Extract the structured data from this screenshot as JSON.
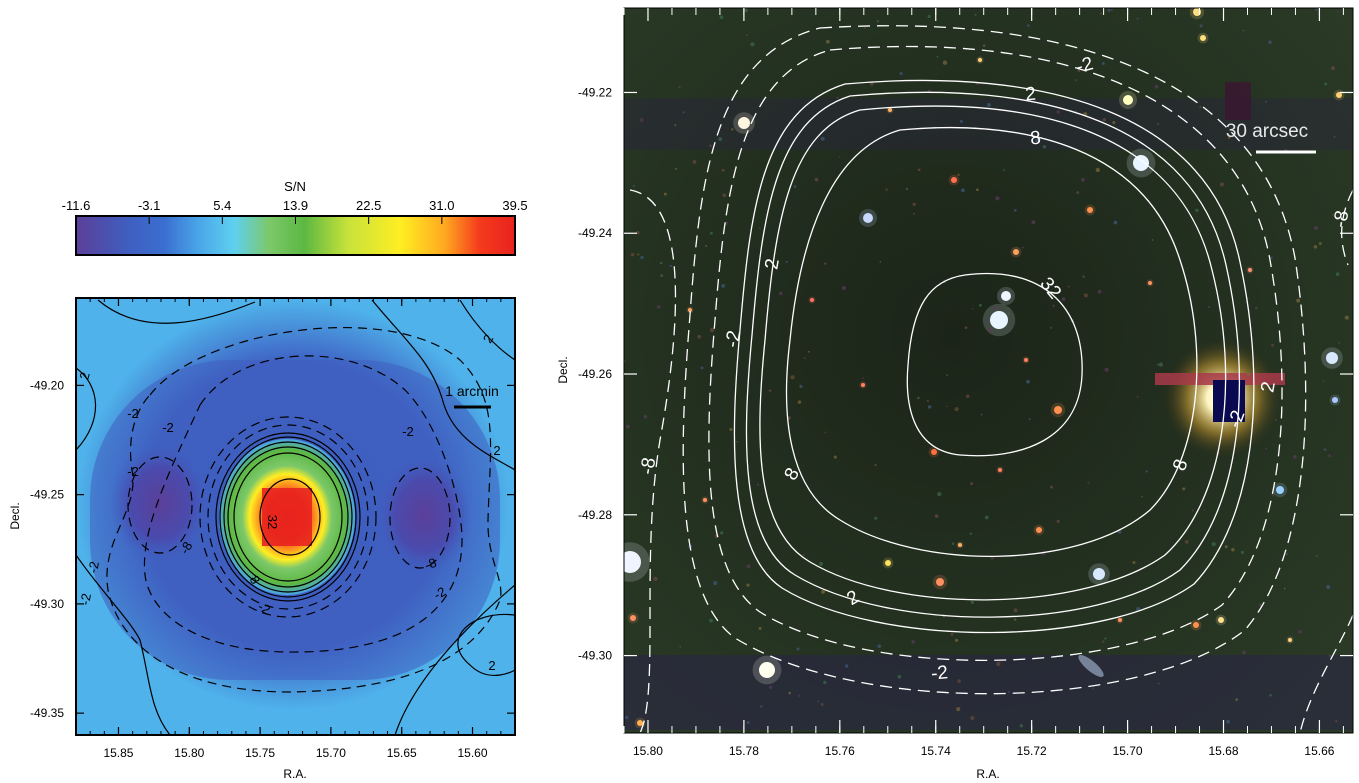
{
  "colorbar": {
    "title": "S/N",
    "ticks": [
      "-11.6",
      "-3.1",
      "5.4",
      "13.9",
      "22.5",
      "31.0",
      "39.5"
    ],
    "range": [
      -11.6,
      39.5
    ],
    "colors": [
      "#5b3f99",
      "#3f5fc0",
      "#4aa6e8",
      "#5fd0f0",
      "#7cc86a",
      "#5cb842",
      "#c8e23a",
      "#ffee22",
      "#ffa820",
      "#f43a1c",
      "#e8231f"
    ]
  },
  "chart_data": [
    {
      "type": "heatmap",
      "xlabel": "R.A.",
      "ylabel": "Decl.",
      "xlim": [
        15.88,
        15.57
      ],
      "ylim": [
        -49.36,
        -49.16
      ],
      "xticks": [
        "15.85",
        "15.80",
        "15.75",
        "15.70",
        "15.65",
        "15.60"
      ],
      "xtick_values": [
        15.85,
        15.8,
        15.75,
        15.7,
        15.65,
        15.6
      ],
      "yticks": [
        "-49.20",
        "-49.25",
        "-49.30",
        "-49.35"
      ],
      "ytick_values": [
        -49.2,
        -49.25,
        -49.3,
        -49.35
      ],
      "contour_labels": [
        "2",
        "-2",
        "-2",
        "2",
        "-2",
        "-2",
        "-8",
        "-8",
        "-2",
        "2",
        "-2",
        "8",
        "-2",
        "32",
        "-2",
        "2"
      ],
      "scale_bar_label": "1 arcmin",
      "peak": {
        "ra": 15.728,
        "dec": -49.259,
        "sn": 39.5
      },
      "colors": {
        "background": "#4fb2ea",
        "low": "#3f5fc0",
        "min": "#5b3f99",
        "high": "#e8231f"
      }
    },
    {
      "type": "scatter",
      "xlabel": "R.A.",
      "ylabel": "Decl.",
      "xlim": [
        15.805,
        15.653
      ],
      "ylim": [
        -49.311,
        -49.208
      ],
      "xticks": [
        "15.80",
        "15.78",
        "15.76",
        "15.74",
        "15.72",
        "15.70",
        "15.68",
        "15.66"
      ],
      "xtick_values": [
        15.8,
        15.78,
        15.76,
        15.74,
        15.72,
        15.7,
        15.68,
        15.66
      ],
      "yticks": [
        "-49.22",
        "-49.24",
        "-49.26",
        "-49.28",
        "-49.30"
      ],
      "ytick_values": [
        -49.22,
        -49.24,
        -49.26,
        -49.28,
        -49.3
      ],
      "contour_labels": [
        "-2",
        "2",
        "8",
        "-8",
        "2",
        "-2",
        "32",
        "8",
        "8",
        "2",
        "-2",
        "-8",
        "2",
        "-2"
      ],
      "scale_bar_label": "30 arcsec",
      "colors": {
        "sky": "#1d2a1c",
        "contour": "#ffffff"
      }
    }
  ]
}
